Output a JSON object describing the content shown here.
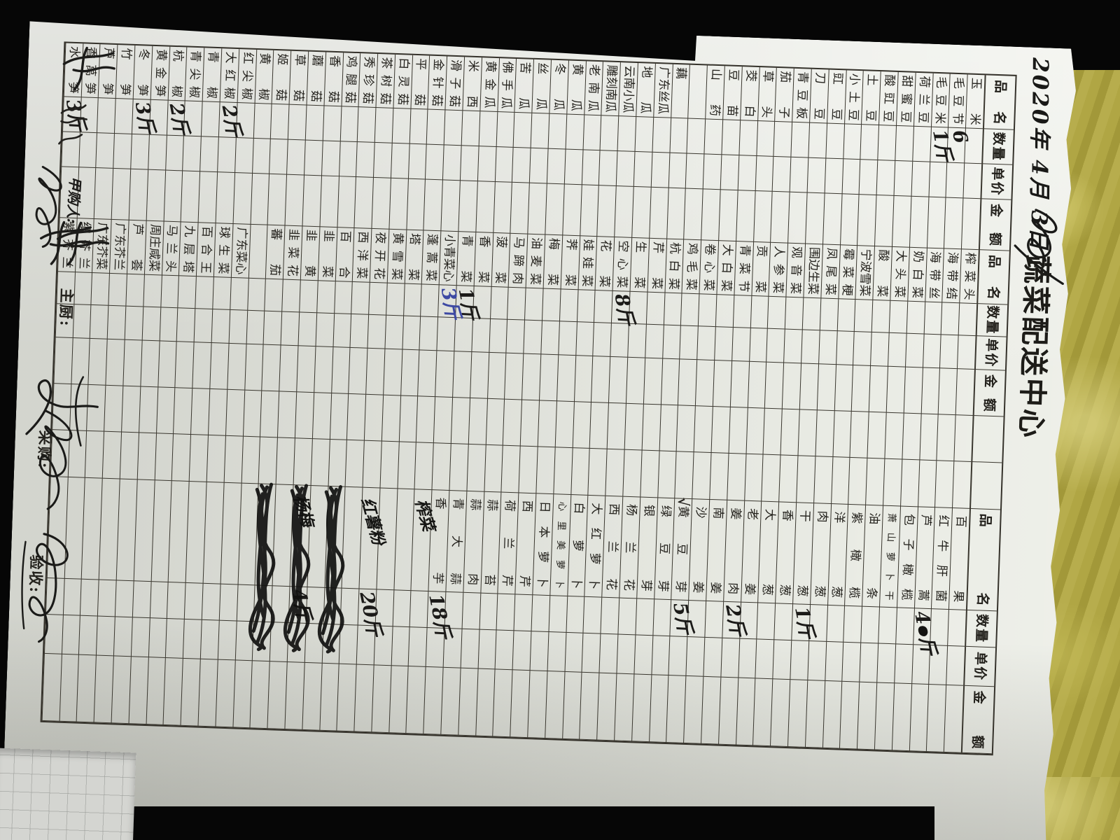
{
  "title": "蔬菜配送中心",
  "date": "2020年 4月 3日",
  "headers": {
    "name": "品名",
    "qty": "数量",
    "price": "单价",
    "amount": "金额"
  },
  "footer": {
    "buyer_label": "甲购人:",
    "chef_label": "主厨:",
    "purchase_label": "采购:",
    "receive_label": "验收:"
  },
  "colors": {
    "paper": "#e9ebe4",
    "ink": "#201f1b",
    "blue_ink": "#3d49a3",
    "fabric": "#ab9f3e",
    "background": "#060606"
  },
  "groups": [
    {
      "items": [
        {
          "n": "玉米"
        },
        {
          "n": "毛豆节",
          "q": "6"
        },
        {
          "n": "毛豆米",
          "q": "1斤"
        },
        {
          "n": "荷兰豆"
        },
        {
          "n": "甜蜜豆"
        },
        {
          "n": "酸豇豆"
        },
        {
          "n": "土豆"
        },
        {
          "n": "小土豆"
        },
        {
          "n": "豇豆"
        },
        {
          "n": "刀豆"
        },
        {
          "n": "青豆板"
        },
        {
          "n": "茄子"
        },
        {
          "n": "草头"
        },
        {
          "n": "茭白"
        },
        {
          "n": "豆苗"
        },
        {
          "n": "山药"
        },
        {
          "n": ""
        },
        {
          "n": "藕"
        },
        {
          "n": "广东丝瓜"
        },
        {
          "n": "地瓜"
        },
        {
          "n": "云南小瓜"
        },
        {
          "n": "雕刻南瓜"
        },
        {
          "n": "老南瓜"
        },
        {
          "n": "黄瓜"
        },
        {
          "n": "冬瓜"
        },
        {
          "n": "丝瓜"
        },
        {
          "n": "苦瓜"
        },
        {
          "n": "佛手瓜"
        },
        {
          "n": "黄金瓜"
        },
        {
          "n": "米西"
        },
        {
          "n": "滑子菇"
        },
        {
          "n": "金针菇"
        },
        {
          "n": "平菇"
        },
        {
          "n": "白灵菇"
        },
        {
          "n": "茶树菇"
        },
        {
          "n": "秀珍菇"
        },
        {
          "n": "鸡腿菇"
        },
        {
          "n": "香菇"
        },
        {
          "n": "蘑菇"
        },
        {
          "n": "草菇"
        },
        {
          "n": "姬菇"
        },
        {
          "n": "黄椒"
        },
        {
          "n": "红尖椒"
        },
        {
          "n": "大红椒",
          "q": "2斤"
        },
        {
          "n": "青椒"
        },
        {
          "n": "青尖椒"
        },
        {
          "n": "杭椒",
          "q": "2斤"
        },
        {
          "n": "黄金笋"
        },
        {
          "n": "冬笋",
          "q": "3斤"
        },
        {
          "n": "竹笋"
        },
        {
          "n": "芦笋"
        },
        {
          "n": "香莴笋",
          "flick": true
        },
        {
          "n": "水笋",
          "q": "3斤"
        }
      ]
    },
    {
      "items": [
        {
          "n": "榨菜头"
        },
        {
          "n": "海带结"
        },
        {
          "n": "海带丝"
        },
        {
          "n": "奶白菜"
        },
        {
          "n": "大头菜"
        },
        {
          "n": "酸菜"
        },
        {
          "n": "宁波雪菜"
        },
        {
          "n": "霉菜梗"
        },
        {
          "n": "凤尾菜"
        },
        {
          "n": "围边生菜"
        },
        {
          "n": "观音菜"
        },
        {
          "n": "人参菜"
        },
        {
          "n": "贡菜"
        },
        {
          "n": "青菜节"
        },
        {
          "n": "大白菜"
        },
        {
          "n": "卷心菜"
        },
        {
          "n": "鸡毛菜"
        },
        {
          "n": "杭白菜"
        },
        {
          "n": "芹菜"
        },
        {
          "n": "生菜"
        },
        {
          "n": "空心菜",
          "q": "8斤"
        },
        {
          "n": "花菜"
        },
        {
          "n": "娃娃菜"
        },
        {
          "n": "荠菜"
        },
        {
          "n": "梅菜"
        },
        {
          "n": "油麦菜"
        },
        {
          "n": "马蹄肉"
        },
        {
          "n": "菠菜"
        },
        {
          "n": "香菜"
        },
        {
          "n": "青菜",
          "q": "1斤"
        },
        {
          "n": "小青菜心",
          "q": "3斤",
          "qblue": true
        },
        {
          "n": "蓬蒿菜"
        },
        {
          "n": "塔菜"
        },
        {
          "n": "黄雪菜"
        },
        {
          "n": "夜开花"
        },
        {
          "n": "西洋菜"
        },
        {
          "n": "百合"
        },
        {
          "n": "韭菜"
        },
        {
          "n": "韭黄"
        },
        {
          "n": "韭菜花"
        },
        {
          "n": "蕃茄"
        },
        {
          "n": ""
        },
        {
          "n": "广东菜心"
        },
        {
          "n": "球生菜"
        },
        {
          "n": "百合王"
        },
        {
          "n": "九层塔"
        },
        {
          "n": "马兰头"
        },
        {
          "n": "周庄咸菜"
        },
        {
          "n": "芦荟"
        },
        {
          "n": "广东芥兰"
        },
        {
          "n": "广东芥菜"
        },
        {
          "n": "细芥兰",
          "flick": true
        },
        {
          "n": "紫芥兰",
          "flick": true
        }
      ]
    },
    {
      "items": [
        {
          "n": "百果"
        },
        {
          "n": "红牛肝菌"
        },
        {
          "n": "芦蒿",
          "q": "4斤",
          "blob": true
        },
        {
          "n": "包子橄榄"
        },
        {
          "n": "萧山萝卜干"
        },
        {
          "n": "油条"
        },
        {
          "n": "紫橄榄"
        },
        {
          "n": "洋葱"
        },
        {
          "n": "肉葱"
        },
        {
          "n": "干葱",
          "q": "1斤"
        },
        {
          "n": "香葱"
        },
        {
          "n": "大葱"
        },
        {
          "n": "老姜"
        },
        {
          "n": "姜肉",
          "q": "2斤"
        },
        {
          "n": "南姜"
        },
        {
          "n": "沙姜"
        },
        {
          "n": "黄豆芽",
          "check": "√",
          "q": "5斤"
        },
        {
          "n": "绿豆芽"
        },
        {
          "n": "银芽"
        },
        {
          "n": "杨兰花"
        },
        {
          "n": "西兰花"
        },
        {
          "n": "大红萝卜"
        },
        {
          "n": "白萝卜"
        },
        {
          "n": "心里美萝卜"
        },
        {
          "n": "日本萝卜"
        },
        {
          "n": "西芹"
        },
        {
          "n": "荷兰芹"
        },
        {
          "n": "蒜苔"
        },
        {
          "n": "蒜肉"
        },
        {
          "n": "青大蒜"
        },
        {
          "n": "香芋",
          "q": "18斤"
        },
        {
          "n": "榨菜",
          "hand": true
        },
        {
          "n": ""
        },
        {
          "n": ""
        },
        {
          "n": "红薯粉",
          "hand": true,
          "q": "20斤"
        },
        {
          "n": ""
        },
        {
          "n": "",
          "cross": true
        },
        {
          "n": ""
        },
        {
          "n": "杨梅",
          "hand": true,
          "cross": true,
          "q": "4斤"
        },
        {
          "n": ""
        },
        {
          "n": "",
          "cross": true
        },
        {
          "n": ""
        },
        {
          "n": ""
        },
        {
          "n": ""
        },
        {
          "n": ""
        },
        {
          "n": ""
        },
        {
          "n": ""
        },
        {
          "n": ""
        },
        {
          "n": ""
        },
        {
          "n": ""
        },
        {
          "n": ""
        },
        {
          "n": ""
        },
        {
          "n": ""
        }
      ]
    }
  ]
}
